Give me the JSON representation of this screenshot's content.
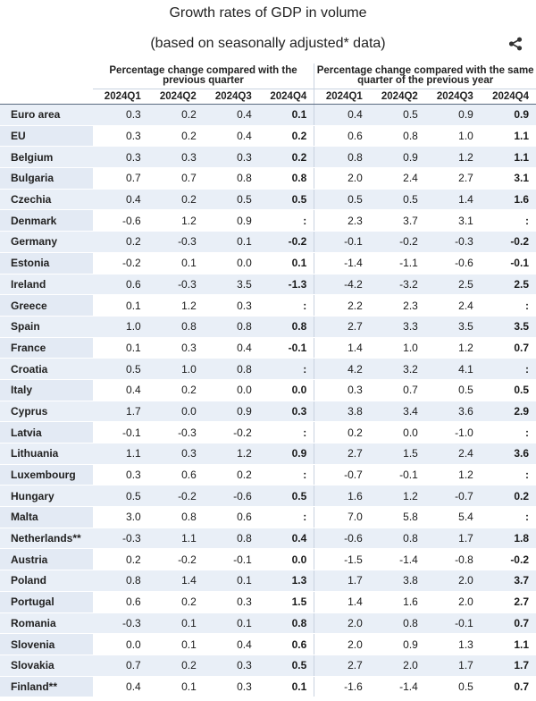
{
  "title": "Growth rates of GDP in volume",
  "subtitle": "(based on seasonally adjusted* data)",
  "share_icon": "share-icon",
  "groups": [
    "Percentage change compared with the previous quarter",
    "Percentage change compared with the same quarter of the previous year"
  ],
  "quarters": [
    "2024Q1",
    "2024Q2",
    "2024Q3",
    "2024Q4",
    "2024Q1",
    "2024Q2",
    "2024Q3",
    "2024Q4"
  ],
  "rows": [
    {
      "name": "Euro area",
      "v": [
        "0.3",
        "0.2",
        "0.4",
        "0.1",
        "0.4",
        "0.5",
        "0.9",
        "0.9"
      ]
    },
    {
      "name": "EU",
      "v": [
        "0.3",
        "0.2",
        "0.4",
        "0.2",
        "0.6",
        "0.8",
        "1.0",
        "1.1"
      ]
    },
    {
      "name": "Belgium",
      "v": [
        "0.3",
        "0.3",
        "0.3",
        "0.2",
        "0.8",
        "0.9",
        "1.2",
        "1.1"
      ]
    },
    {
      "name": "Bulgaria",
      "v": [
        "0.7",
        "0.7",
        "0.8",
        "0.8",
        "2.0",
        "2.4",
        "2.7",
        "3.1"
      ]
    },
    {
      "name": "Czechia",
      "v": [
        "0.4",
        "0.2",
        "0.5",
        "0.5",
        "0.5",
        "0.5",
        "1.4",
        "1.6"
      ]
    },
    {
      "name": "Denmark",
      "v": [
        "-0.6",
        "1.2",
        "0.9",
        ":",
        "2.3",
        "3.7",
        "3.1",
        ":"
      ]
    },
    {
      "name": "Germany",
      "v": [
        "0.2",
        "-0.3",
        "0.1",
        "-0.2",
        "-0.1",
        "-0.2",
        "-0.3",
        "-0.2"
      ]
    },
    {
      "name": "Estonia",
      "v": [
        "-0.2",
        "0.1",
        "0.0",
        "0.1",
        "-1.4",
        "-1.1",
        "-0.6",
        "-0.1"
      ]
    },
    {
      "name": "Ireland",
      "v": [
        "0.6",
        "-0.3",
        "3.5",
        "-1.3",
        "-4.2",
        "-3.2",
        "2.5",
        "2.5"
      ]
    },
    {
      "name": "Greece",
      "v": [
        "0.1",
        "1.2",
        "0.3",
        ":",
        "2.2",
        "2.3",
        "2.4",
        ":"
      ]
    },
    {
      "name": "Spain",
      "v": [
        "1.0",
        "0.8",
        "0.8",
        "0.8",
        "2.7",
        "3.3",
        "3.5",
        "3.5"
      ]
    },
    {
      "name": "France",
      "v": [
        "0.1",
        "0.3",
        "0.4",
        "-0.1",
        "1.4",
        "1.0",
        "1.2",
        "0.7"
      ]
    },
    {
      "name": "Croatia",
      "v": [
        "0.5",
        "1.0",
        "0.8",
        ":",
        "4.2",
        "3.2",
        "4.1",
        ":"
      ]
    },
    {
      "name": "Italy",
      "v": [
        "0.4",
        "0.2",
        "0.0",
        "0.0",
        "0.3",
        "0.7",
        "0.5",
        "0.5"
      ]
    },
    {
      "name": "Cyprus",
      "v": [
        "1.7",
        "0.0",
        "0.9",
        "0.3",
        "3.8",
        "3.4",
        "3.6",
        "2.9"
      ]
    },
    {
      "name": "Latvia",
      "v": [
        "-0.1",
        "-0.3",
        "-0.2",
        ":",
        "0.2",
        "0.0",
        "-1.0",
        ":"
      ]
    },
    {
      "name": "Lithuania",
      "v": [
        "1.1",
        "0.3",
        "1.2",
        "0.9",
        "2.7",
        "1.5",
        "2.4",
        "3.6"
      ]
    },
    {
      "name": "Luxembourg",
      "v": [
        "0.3",
        "0.6",
        "0.2",
        ":",
        "-0.7",
        "-0.1",
        "1.2",
        ":"
      ]
    },
    {
      "name": "Hungary",
      "v": [
        "0.5",
        "-0.2",
        "-0.6",
        "0.5",
        "1.6",
        "1.2",
        "-0.7",
        "0.2"
      ]
    },
    {
      "name": "Malta",
      "v": [
        "3.0",
        "0.8",
        "0.6",
        ":",
        "7.0",
        "5.8",
        "5.4",
        ":"
      ]
    },
    {
      "name": "Netherlands**",
      "v": [
        "-0.3",
        "1.1",
        "0.8",
        "0.4",
        "-0.6",
        "0.8",
        "1.7",
        "1.8"
      ]
    },
    {
      "name": "Austria",
      "v": [
        "0.2",
        "-0.2",
        "-0.1",
        "0.0",
        "-1.5",
        "-1.4",
        "-0.8",
        "-0.2"
      ]
    },
    {
      "name": "Poland",
      "v": [
        "0.8",
        "1.4",
        "0.1",
        "1.3",
        "1.7",
        "3.8",
        "2.0",
        "3.7"
      ]
    },
    {
      "name": "Portugal",
      "v": [
        "0.6",
        "0.2",
        "0.3",
        "1.5",
        "1.4",
        "1.6",
        "2.0",
        "2.7"
      ]
    },
    {
      "name": "Romania",
      "v": [
        "-0.3",
        "0.1",
        "0.1",
        "0.8",
        "2.0",
        "0.8",
        "-0.1",
        "0.7"
      ]
    },
    {
      "name": "Slovenia",
      "v": [
        "0.0",
        "0.1",
        "0.4",
        "0.6",
        "2.0",
        "0.9",
        "1.3",
        "1.1"
      ]
    },
    {
      "name": "Slovakia",
      "v": [
        "0.7",
        "0.2",
        "0.3",
        "0.5",
        "2.7",
        "2.0",
        "1.7",
        "1.7"
      ]
    },
    {
      "name": "Finland**",
      "v": [
        "0.4",
        "0.1",
        "0.3",
        "0.1",
        "-1.6",
        "-1.4",
        "0.5",
        "0.7"
      ]
    }
  ]
}
